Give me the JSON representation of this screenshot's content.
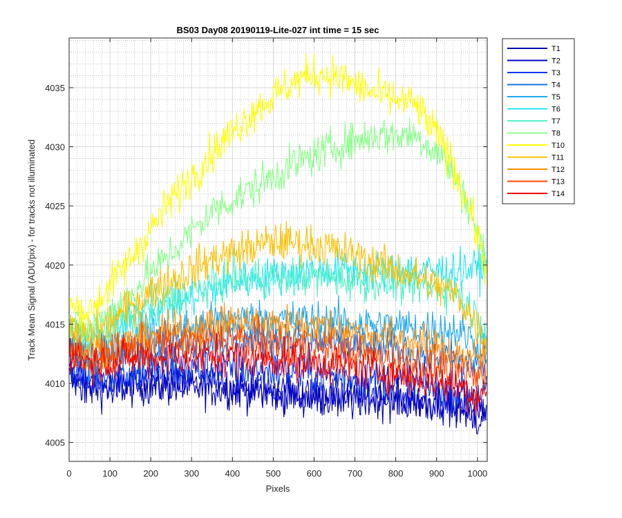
{
  "chart_data": {
    "type": "line",
    "title": "BS03 Day08 20190119-Lite-027 int time = 15 sec",
    "xlabel": "Pixels",
    "ylabel": "Track Mean Signal (ADU/pix) - for tracks not illuminated",
    "xlim": [
      0,
      1024
    ],
    "ylim": [
      4003.4,
      4039.2
    ],
    "x_ticks": [
      0,
      100,
      200,
      300,
      400,
      500,
      600,
      700,
      800,
      900,
      1000
    ],
    "y_ticks": [
      4005,
      4010,
      4015,
      4020,
      4025,
      4030,
      4035
    ],
    "grid": "on (major and minor)",
    "legend_position": "outside-right",
    "series": [
      {
        "name": "T1",
        "color": "#0000aa",
        "profile": {
          "pixels": [
            0,
            50,
            200,
            400,
            600,
            800,
            950,
            1000,
            1023
          ],
          "signal": [
            4010.5,
            4009.5,
            4009.8,
            4009.5,
            4008.8,
            4008.6,
            4008.0,
            4007.0,
            4007.5
          ]
        }
      },
      {
        "name": "T2",
        "color": "#0000cc",
        "profile": {
          "pixels": [
            0,
            50,
            200,
            400,
            600,
            800,
            950,
            1000,
            1023
          ],
          "signal": [
            4010.8,
            4009.8,
            4010.0,
            4009.8,
            4009.0,
            4008.8,
            4008.3,
            4007.3,
            4007.8
          ]
        }
      },
      {
        "name": "T3",
        "color": "#0033ee",
        "profile": {
          "pixels": [
            0,
            50,
            200,
            400,
            600,
            800,
            950,
            1000,
            1023
          ],
          "signal": [
            4011.5,
            4010.5,
            4011.0,
            4011.3,
            4010.8,
            4010.2,
            4009.5,
            4009.0,
            4009.5
          ]
        }
      },
      {
        "name": "T4",
        "color": "#1173e8",
        "profile": {
          "pixels": [
            0,
            50,
            200,
            400,
            600,
            800,
            950,
            1000,
            1023
          ],
          "signal": [
            4012.5,
            4011.8,
            4013.0,
            4013.8,
            4013.5,
            4012.8,
            4012.0,
            4011.5,
            4012.0
          ]
        }
      },
      {
        "name": "T5",
        "color": "#1aa8f0",
        "profile": {
          "pixels": [
            0,
            50,
            200,
            400,
            600,
            800,
            950,
            1000,
            1023
          ],
          "signal": [
            4013.0,
            4012.3,
            4014.0,
            4015.5,
            4015.3,
            4014.8,
            4014.5,
            4013.5,
            4014.0
          ]
        }
      },
      {
        "name": "T6",
        "color": "#22e6f0",
        "profile": {
          "pixels": [
            0,
            50,
            200,
            400,
            600,
            800,
            950,
            1000,
            1023
          ],
          "signal": [
            4014.0,
            4013.5,
            4016.0,
            4018.5,
            4019.5,
            4019.5,
            4019.5,
            4019.8,
            4019.8
          ]
        }
      },
      {
        "name": "T7",
        "color": "#55f0c8",
        "profile": {
          "pixels": [
            0,
            50,
            200,
            400,
            600,
            800,
            950,
            1000,
            1023
          ],
          "signal": [
            4014.3,
            4013.8,
            4016.5,
            4019.0,
            4019.0,
            4018.5,
            4017.8,
            4015.5,
            4014.5
          ]
        }
      },
      {
        "name": "T8",
        "color": "#88ff88",
        "profile": {
          "pixels": [
            0,
            50,
            150,
            250,
            350,
            450,
            550,
            650,
            750,
            850,
            920,
            980,
            1023
          ],
          "signal": [
            4015.0,
            4014.5,
            4017.5,
            4021.0,
            4024.5,
            4026.5,
            4028.5,
            4030.0,
            4031.0,
            4031.0,
            4029.0,
            4025.0,
            4020.0
          ]
        }
      },
      {
        "name": "T10",
        "color": "#ffff00",
        "profile": {
          "pixels": [
            0,
            50,
            150,
            250,
            350,
            450,
            550,
            600,
            650,
            750,
            850,
            920,
            980,
            1023
          ],
          "signal": [
            4016.5,
            4016.0,
            4020.5,
            4025.5,
            4029.5,
            4033.0,
            4035.5,
            4036.2,
            4036.0,
            4034.5,
            4033.5,
            4030.0,
            4025.0,
            4019.5
          ]
        }
      },
      {
        "name": "T11",
        "color": "#ffc000",
        "profile": {
          "pixels": [
            0,
            50,
            200,
            350,
            500,
            600,
            700,
            850,
            950,
            1000,
            1023
          ],
          "signal": [
            4014.5,
            4013.8,
            4017.8,
            4020.5,
            4022.0,
            4021.8,
            4020.8,
            4019.0,
            4017.5,
            4014.8,
            4013.5
          ]
        }
      },
      {
        "name": "T12",
        "color": "#ff8c00",
        "profile": {
          "pixels": [
            0,
            50,
            200,
            400,
            600,
            800,
            950,
            1000,
            1023
          ],
          "signal": [
            4013.5,
            4012.5,
            4014.0,
            4015.2,
            4014.8,
            4013.8,
            4012.5,
            4012.0,
            4012.5
          ]
        }
      },
      {
        "name": "T13",
        "color": "#ff4400",
        "profile": {
          "pixels": [
            0,
            50,
            200,
            400,
            600,
            800,
            950,
            1000,
            1023
          ],
          "signal": [
            4013.0,
            4012.0,
            4013.3,
            4013.8,
            4013.0,
            4012.0,
            4011.0,
            4010.5,
            4011.0
          ]
        }
      },
      {
        "name": "T14",
        "color": "#ee0000",
        "profile": {
          "pixels": [
            0,
            50,
            200,
            400,
            600,
            800,
            950,
            1000,
            1023
          ],
          "signal": [
            4012.8,
            4011.8,
            4012.2,
            4012.3,
            4011.8,
            4010.8,
            4009.8,
            4009.0,
            4009.5
          ]
        }
      }
    ]
  }
}
